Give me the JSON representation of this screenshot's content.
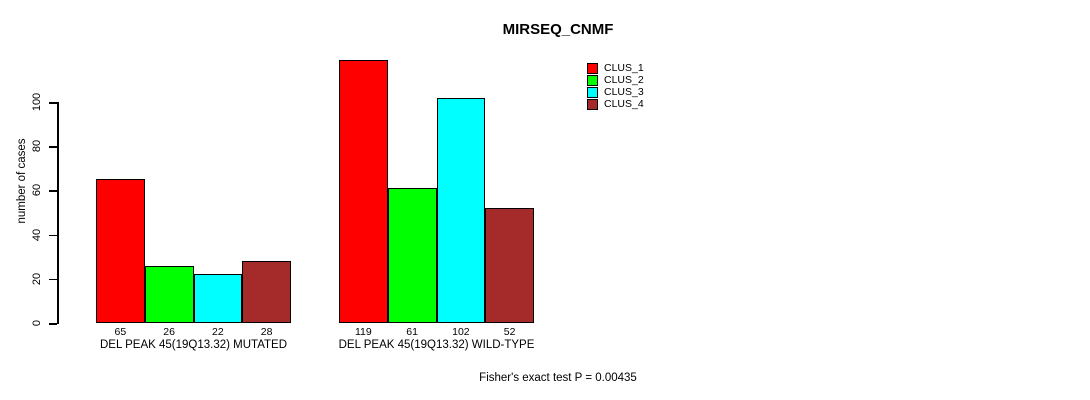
{
  "title": "MIRSEQ_CNMF",
  "ylabel": "number of cases",
  "footer": "Fisher's exact test P = 0.00435",
  "chart_data": {
    "type": "bar",
    "title": "MIRSEQ_CNMF",
    "xlabel": "",
    "ylabel": "number of cases",
    "categories": [
      "DEL PEAK 45(19Q13.32) MUTATED",
      "DEL PEAK 45(19Q13.32) WILD-TYPE"
    ],
    "series": [
      {
        "name": "CLUS_1",
        "color": "#FF0000",
        "values": [
          65,
          119
        ]
      },
      {
        "name": "CLUS_2",
        "color": "#00FF00",
        "values": [
          26,
          61
        ]
      },
      {
        "name": "CLUS_3",
        "color": "#00FFFF",
        "values": [
          22,
          102
        ]
      },
      {
        "name": "CLUS_4",
        "color": "#A52A2A",
        "values": [
          28,
          52
        ]
      }
    ],
    "bar_value_labels": [
      [
        65,
        26,
        22,
        28
      ],
      [
        119,
        61,
        102,
        52
      ]
    ],
    "yticks": [
      0,
      20,
      40,
      60,
      80,
      100
    ],
    "ylim": [
      0,
      100
    ],
    "grid": false,
    "legend_position": "right",
    "legend_entries": [
      "CLUS_1",
      "CLUS_2",
      "CLUS_3",
      "CLUS_4"
    ],
    "annotation": "Fisher's exact test P = 0.00435"
  }
}
